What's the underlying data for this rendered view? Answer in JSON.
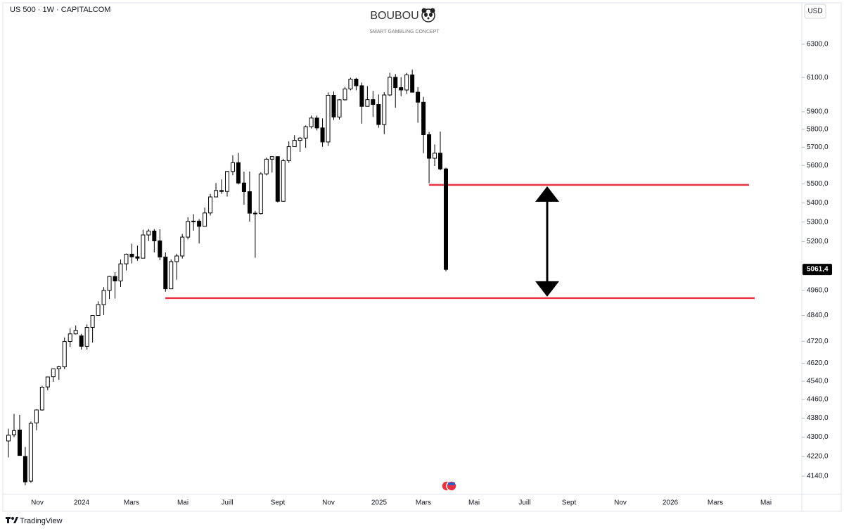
{
  "chart_data": {
    "type": "candlestick",
    "symbol": "US 500 · 1W · CAPITALCOM",
    "title": "BOUBOU",
    "subtitle": "SMART GAMBLING CONCEPT",
    "currency": "USD",
    "brand": "TradingView",
    "log_scale": true,
    "up_color": "#ffffff",
    "down_color": "#000000",
    "line_color": "#e8323f",
    "ylim": [
      4067,
      6577
    ],
    "yticks": [
      {
        "value": 6300,
        "label": "6300,0"
      },
      {
        "value": 6100,
        "label": "6100,0"
      },
      {
        "value": 5900,
        "label": "5900,0"
      },
      {
        "value": 5800,
        "label": "5800,0"
      },
      {
        "value": 5700,
        "label": "5700,0"
      },
      {
        "value": 5600,
        "label": "5600,0"
      },
      {
        "value": 5500,
        "label": "5500,0"
      },
      {
        "value": 5400,
        "label": "5400,0"
      },
      {
        "value": 5300,
        "label": "5300,0"
      },
      {
        "value": 5200,
        "label": "5200,0"
      },
      {
        "value": 4960,
        "label": "4960,0"
      },
      {
        "value": 4840,
        "label": "4840,0"
      },
      {
        "value": 4720,
        "label": "4720,0"
      },
      {
        "value": 4620,
        "label": "4620,0"
      },
      {
        "value": 4540,
        "label": "4540,0"
      },
      {
        "value": 4460,
        "label": "4460,0"
      },
      {
        "value": 4380,
        "label": "4380,0"
      },
      {
        "value": 4300,
        "label": "4300,0"
      },
      {
        "value": 4220,
        "label": "4220,0"
      },
      {
        "value": 4140,
        "label": "4140,0"
      }
    ],
    "x_labels": [
      "Nov",
      "2024",
      "Mars",
      "Mai",
      "Juill",
      "Sept",
      "Nov",
      "2025",
      "Mars",
      "Mai",
      "Juill",
      "Sept",
      "Nov",
      "2026",
      "Mars",
      "Mai"
    ],
    "last_price": {
      "value": 5061.4,
      "label": "5061,4"
    },
    "hlines": [
      5495,
      4922
    ],
    "open": [
      4284,
      4310,
      4330,
      4220,
      4120,
      4360,
      4415,
      4515,
      4560,
      4595,
      4604,
      4719,
      4754,
      4745,
      4697,
      4784,
      4840,
      4891,
      4959,
      5027,
      5005,
      5089,
      5137,
      5124,
      5117,
      5234,
      5254,
      5204,
      5123,
      4967,
      5100,
      5128,
      5223,
      5303,
      5305,
      5278,
      5347,
      5431,
      5465,
      5460,
      5567,
      5615,
      5505,
      5459,
      5346,
      5344,
      5554,
      5634,
      5648,
      5408,
      5626,
      5703,
      5738,
      5751,
      5815,
      5864,
      5808,
      5729,
      5995,
      5870,
      5969,
      6032,
      6090,
      6051,
      5931,
      5970,
      5942,
      5827,
      5997,
      6101,
      6040,
      6026,
      6115,
      6013,
      5955,
      5770,
      5639,
      5667,
      5581
    ],
    "high": [
      4335,
      4398,
      4394,
      4259,
      4366,
      4418,
      4520,
      4560,
      4595,
      4609,
      4738,
      4779,
      4793,
      4754,
      4798,
      4842,
      4907,
      4975,
      5030,
      5048,
      5111,
      5140,
      5190,
      5180,
      5261,
      5264,
      5264,
      5263,
      5146,
      5111,
      5139,
      5239,
      5325,
      5341,
      5315,
      5375,
      5447,
      5505,
      5524,
      5570,
      5655,
      5669,
      5566,
      5567,
      5358,
      5563,
      5643,
      5651,
      5650,
      5636,
      5733,
      5767,
      5757,
      5822,
      5878,
      5878,
      5862,
      6012,
      6017,
      5972,
      6044,
      6099,
      6098,
      6070,
      6049,
      6021,
      6000,
      6014,
      6128,
      6120,
      6101,
      6127,
      6147,
      6043,
      5986,
      5785,
      5715,
      5787,
      5588
    ],
    "low": [
      4216,
      4300,
      4223,
      4103,
      4113,
      4329,
      4412,
      4500,
      4537,
      4546,
      4593,
      4695,
      4751,
      4682,
      4682,
      4714,
      4845,
      4842,
      4918,
      4920,
      4976,
      5056,
      5091,
      5104,
      5117,
      5203,
      5146,
      5107,
      4953,
      4968,
      5011,
      5115,
      5211,
      5256,
      5191,
      5275,
      5334,
      5432,
      5447,
      5433,
      5547,
      5497,
      5390,
      5302,
      5119,
      5339,
      5546,
      5561,
      5402,
      5406,
      5614,
      5703,
      5674,
      5696,
      5805,
      5794,
      5702,
      5707,
      5853,
      5855,
      5963,
      6024,
      6024,
      5832,
      5930,
      5870,
      5809,
      5773,
      5990,
      5923,
      5990,
      6003,
      6013,
      5837,
      5667,
      5504,
      5597,
      5573,
      5052
    ],
    "close": [
      4308,
      4327,
      4224,
      4117,
      4358,
      4415,
      4514,
      4559,
      4595,
      4604,
      4719,
      4754,
      4770,
      4697,
      4784,
      4840,
      4891,
      4959,
      5027,
      5005,
      5089,
      5137,
      5124,
      5117,
      5234,
      5254,
      5204,
      5123,
      4967,
      5100,
      5128,
      5223,
      5303,
      5305,
      5278,
      5347,
      5431,
      5465,
      5460,
      5567,
      5615,
      5505,
      5459,
      5346,
      5344,
      5554,
      5634,
      5648,
      5408,
      5626,
      5703,
      5738,
      5751,
      5815,
      5864,
      5808,
      5729,
      5995,
      5870,
      5969,
      6032,
      6090,
      6051,
      5931,
      5970,
      5942,
      5827,
      5997,
      6101,
      6040,
      6026,
      6115,
      6013,
      5955,
      5770,
      5639,
      5667,
      5581,
      5061.4
    ]
  }
}
